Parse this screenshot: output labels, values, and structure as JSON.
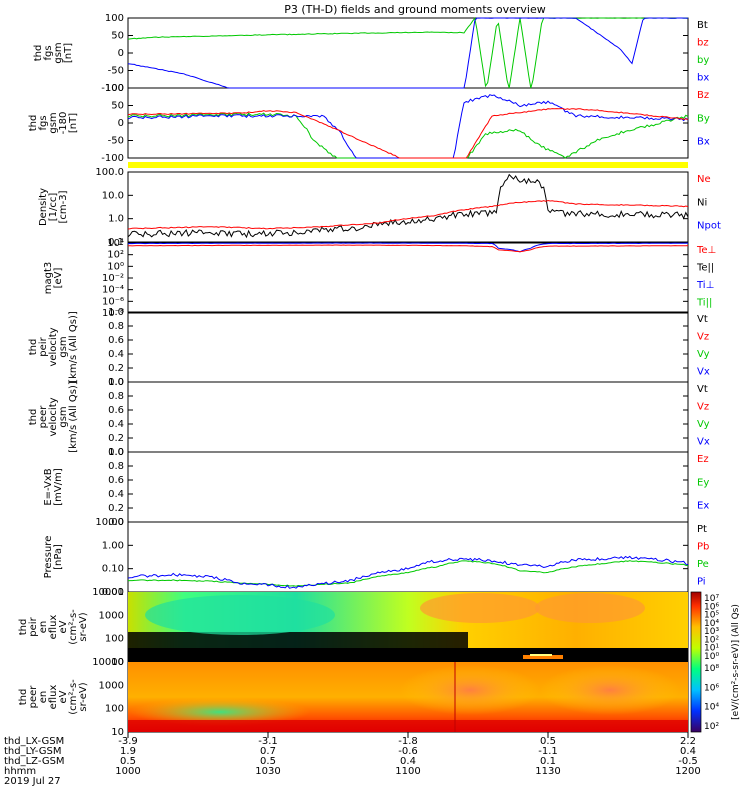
{
  "title": "P3 (TH-D) fields and ground moments overview",
  "colors": {
    "black": "#000000",
    "red": "#ff0000",
    "green": "#00c800",
    "blue": "#0000ff",
    "yellow": "#ffff00"
  },
  "chart_data": {
    "type": "line",
    "title": "P3 (TH-D) fields and ground moments overview",
    "x_axis": {
      "rows": [
        {
          "label": "thd_LX-GSM",
          "values": [
            "-3.9",
            "-3.1",
            "-1.8",
            "0.5",
            "2.2"
          ]
        },
        {
          "label": "thd_LY-GSM",
          "values": [
            "1.9",
            "0.7",
            "-0.6",
            "-1.1",
            "0.4"
          ]
        },
        {
          "label": "thd_LZ-GSM",
          "values": [
            "0.5",
            "0.5",
            "0.4",
            "0.1",
            "-0.5"
          ]
        },
        {
          "label": "hhmm",
          "values": [
            "1000",
            "1030",
            "1100",
            "1130",
            "1200"
          ]
        }
      ],
      "date": "2019 Jul 27",
      "xlim": [
        "1000",
        "1200"
      ]
    },
    "panels": [
      {
        "id": "fgs",
        "ylabel": [
          "thd",
          "fgs",
          "gsm",
          "[nT]"
        ],
        "yticks": [
          "100",
          "50",
          "0",
          "-50",
          "-100"
        ],
        "ylim": [
          -100,
          100
        ],
        "legend": [
          {
            "name": "Bt",
            "color": "#000000"
          },
          {
            "name": "bz",
            "color": "#ff0000"
          },
          {
            "name": "by",
            "color": "#00c800"
          },
          {
            "name": "bx",
            "color": "#0000ff"
          }
        ]
      },
      {
        "id": "fgs_mag",
        "ylabel": [
          "thd",
          "fgs",
          "gsm",
          "-180",
          "[nT]"
        ],
        "yticks": [
          "100",
          "50",
          "0",
          "-50",
          "-100"
        ],
        "ylim": [
          -100,
          100
        ],
        "legend": [
          {
            "name": "Bz",
            "color": "#ff0000"
          },
          {
            "name": "By",
            "color": "#00c800"
          },
          {
            "name": "Bx",
            "color": "#0000ff"
          }
        ]
      },
      {
        "id": "density",
        "ylabel": [
          "Density",
          "[1/cc]",
          "[cm-3]"
        ],
        "yticks": [
          "100.0",
          "10.0",
          "1.0",
          "0.1"
        ],
        "ylim": [
          0.05,
          200
        ],
        "log": true,
        "legend": [
          {
            "name": "Ne",
            "color": "#ff0000"
          },
          {
            "name": "Ni",
            "color": "#000000"
          },
          {
            "name": "Npot",
            "color": "#0000ff"
          }
        ]
      },
      {
        "id": "temp",
        "ylabel": [
          "magt3",
          "[eV]"
        ],
        "yticks": [
          "10⁴",
          "10²",
          "10⁰",
          "10⁻²",
          "10⁻⁴",
          "10⁻⁶",
          "10⁻⁸"
        ],
        "ylim": [
          1e-09,
          10000.0
        ],
        "log": true,
        "legend": [
          {
            "name": "Te⊥",
            "color": "#ff0000"
          },
          {
            "name": "Te||",
            "color": "#000000"
          },
          {
            "name": "Ti⊥",
            "color": "#0000ff"
          },
          {
            "name": "Ti||",
            "color": "#00c800"
          }
        ]
      },
      {
        "id": "peir_vel",
        "ylabel": [
          "thd",
          "peir",
          "velocity",
          "gsm",
          "[km/s (All Qs)]"
        ],
        "yticks": [
          "1.0",
          "0.8",
          "0.6",
          "0.4",
          "0.2",
          "0.0"
        ],
        "ylim": [
          0,
          1
        ],
        "legend": [
          {
            "name": "Vt",
            "color": "#000000"
          },
          {
            "name": "Vz",
            "color": "#ff0000"
          },
          {
            "name": "Vy",
            "color": "#00c800"
          },
          {
            "name": "Vx",
            "color": "#0000ff"
          }
        ]
      },
      {
        "id": "peer_vel",
        "ylabel": [
          "thd",
          "peer",
          "velocity",
          "gsm",
          "[km/s (All Qs)]"
        ],
        "yticks": [
          "1.0",
          "0.8",
          "0.6",
          "0.4",
          "0.2",
          "0.0"
        ],
        "ylim": [
          0,
          1
        ],
        "legend": [
          {
            "name": "Vt",
            "color": "#000000"
          },
          {
            "name": "Vz",
            "color": "#ff0000"
          },
          {
            "name": "Vy",
            "color": "#00c800"
          },
          {
            "name": "Vx",
            "color": "#0000ff"
          }
        ]
      },
      {
        "id": "efield",
        "ylabel": [
          "E=-VxB",
          "[mV/m]"
        ],
        "yticks": [
          "1.0",
          "0.8",
          "0.6",
          "0.4",
          "0.2",
          "0.0"
        ],
        "ylim": [
          0,
          1
        ],
        "legend": [
          {
            "name": "Ez",
            "color": "#ff0000"
          },
          {
            "name": "Ey",
            "color": "#00c800"
          },
          {
            "name": "Ex",
            "color": "#0000ff"
          }
        ]
      },
      {
        "id": "pressure",
        "ylabel": [
          "Pressure",
          "[nPa]"
        ],
        "yticks": [
          "10.00",
          "1.00",
          "0.10",
          "0.01"
        ],
        "ylim": [
          0.005,
          20
        ],
        "log": true,
        "legend": [
          {
            "name": "Pt",
            "color": "#000000"
          },
          {
            "name": "Pb",
            "color": "#ff0000"
          },
          {
            "name": "Pe",
            "color": "#00c800"
          },
          {
            "name": "Pi",
            "color": "#0000ff"
          }
        ]
      },
      {
        "id": "peir_spec",
        "type": "heatmap",
        "ylabel": [
          "thd",
          "peir",
          "en",
          "eflux",
          "eV",
          "(cm²-s-",
          "sr-eV)"
        ],
        "yticks": [
          "10000",
          "1000",
          "100",
          "10"
        ],
        "ylim": [
          5,
          30000
        ],
        "log": true,
        "colorbar": {
          "ticks": [
            "10⁷",
            "10⁶",
            "10⁵",
            "10⁴",
            "10³",
            "10²",
            "10¹",
            "10⁰"
          ]
        }
      },
      {
        "id": "peer_spec",
        "type": "heatmap",
        "ylabel": [
          "thd",
          "peer",
          "en",
          "eflux",
          "eV",
          "(cm²-s-",
          "sr-eV)"
        ],
        "yticks": [
          "10000",
          "1000",
          "100",
          "10"
        ],
        "ylim": [
          5,
          30000
        ],
        "log": true,
        "colorbar": {
          "ticks": [
            "10⁸",
            "10⁶",
            "10⁴",
            "10²"
          ]
        }
      }
    ],
    "colorbar_label": "[eV/(cm²-s-sr-eV)] (All Qs)",
    "series_profiles": {
      "fgs_bx": {
        "x": [
          0,
          10,
          20,
          35,
          60,
          62,
          64,
          80,
          88,
          90,
          92,
          100
        ],
        "y": [
          -30,
          -60,
          -110,
          -110,
          -110,
          100,
          100,
          100,
          10,
          -30,
          100,
          100
        ]
      },
      "fgs_by": {
        "x": [
          0,
          5,
          25,
          35,
          55,
          60,
          62,
          64,
          66,
          68,
          70,
          72,
          74,
          80
        ],
        "y": [
          40,
          45,
          52,
          55,
          60,
          58,
          100,
          -110,
          100,
          -110,
          100,
          -110,
          100,
          100
        ]
      },
      "fgs_mag_bx": {
        "x": [
          0,
          15,
          30,
          35,
          38,
          41,
          50,
          58,
          60,
          65,
          70,
          75,
          80,
          100
        ],
        "y": [
          15,
          20,
          20,
          18,
          -30,
          -110,
          -110,
          -110,
          60,
          80,
          50,
          60,
          20,
          10
        ]
      },
      "fgs_mag_by": {
        "x": [
          0,
          25,
          30,
          32,
          33,
          38,
          52,
          60,
          64,
          70,
          73,
          78,
          85,
          100
        ],
        "y": [
          20,
          25,
          20,
          -20,
          -50,
          -110,
          -110,
          -110,
          -30,
          -20,
          -60,
          -100,
          -40,
          20
        ]
      },
      "fgs_mag_bz": {
        "x": [
          0,
          20,
          25,
          30,
          36,
          50,
          54,
          60,
          65,
          70,
          75,
          80,
          85,
          100
        ],
        "y": [
          25,
          28,
          35,
          30,
          -10,
          -110,
          -110,
          -110,
          20,
          30,
          40,
          40,
          35,
          10
        ]
      },
      "density_ni": {
        "x": [
          0,
          10,
          20,
          30,
          40,
          50,
          55,
          60,
          66,
          68,
          70,
          73,
          75,
          80,
          100
        ],
        "y": [
          0.1,
          0.12,
          0.1,
          0.12,
          0.2,
          0.5,
          0.7,
          1.2,
          1.5,
          100,
          80,
          60,
          1.5,
          1.2,
          1.0
        ]
      },
      "density_ne": {
        "x": [
          0,
          15,
          25,
          35,
          45,
          55,
          60,
          65,
          70,
          75,
          80,
          100
        ],
        "y": [
          0.2,
          0.25,
          0.2,
          0.25,
          0.4,
          1.0,
          2.0,
          3.0,
          5.0,
          6.0,
          4.0,
          3.0
        ]
      },
      "pressure_pi": {
        "x": [
          0,
          10,
          20,
          30,
          40,
          50,
          55,
          60,
          65,
          70,
          75,
          80,
          90,
          100
        ],
        "y": [
          0.03,
          0.04,
          0.015,
          0.008,
          0.02,
          0.08,
          0.2,
          0.25,
          0.2,
          0.12,
          0.1,
          0.22,
          0.3,
          0.15
        ]
      },
      "pressure_pe": {
        "x": [
          0,
          10,
          20,
          30,
          40,
          50,
          55,
          60,
          65,
          70,
          75,
          80,
          90,
          100
        ],
        "y": [
          0.02,
          0.02,
          0.015,
          0.01,
          0.015,
          0.05,
          0.1,
          0.2,
          0.15,
          0.06,
          0.05,
          0.1,
          0.2,
          0.12
        ]
      },
      "temp_ti": {
        "x": [
          0,
          20,
          40,
          60,
          65,
          66,
          70,
          72,
          75,
          100
        ],
        "y": [
          8000,
          9000,
          9500,
          9000,
          8000,
          1000,
          200,
          1000,
          8000,
          9000
        ]
      },
      "temp_te": {
        "x": [
          0,
          20,
          40,
          60,
          65,
          66,
          70,
          72,
          75,
          100
        ],
        "y": [
          3000,
          3500,
          4000,
          3000,
          2000,
          500,
          200,
          500,
          2500,
          3000
        ]
      }
    }
  }
}
